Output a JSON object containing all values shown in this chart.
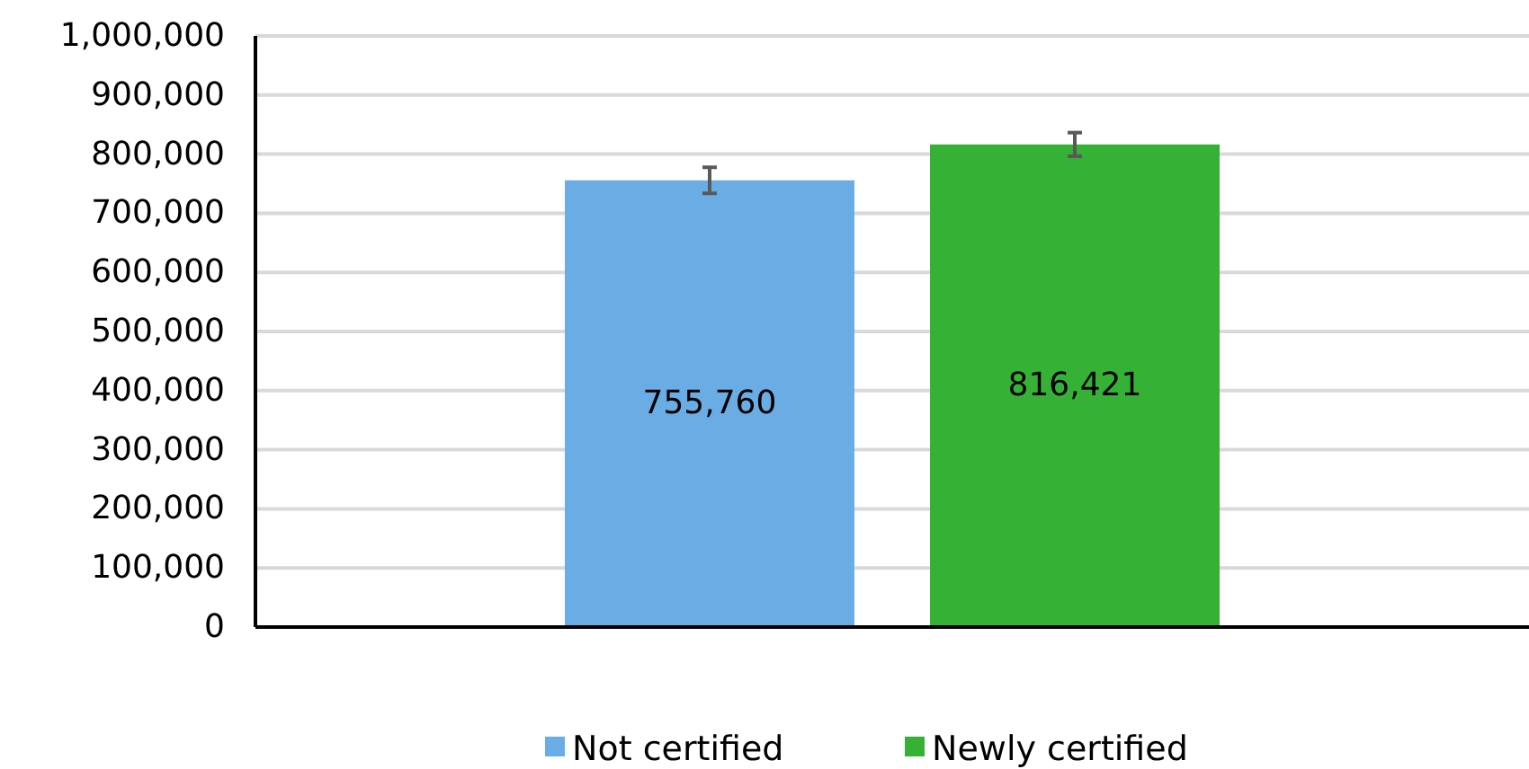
{
  "chart_data": {
    "type": "bar",
    "categories": [
      null
    ],
    "series": [
      {
        "name": "Not certified",
        "color": "#6aade4",
        "values": [
          755760
        ],
        "errors": [
          22000
        ],
        "value_labels": [
          "755,760"
        ]
      },
      {
        "name": "Newly certified",
        "color": "#35b235",
        "values": [
          816421
        ],
        "errors": [
          20000
        ],
        "value_labels": [
          "816,421"
        ]
      }
    ],
    "ylim": [
      0,
      1000000
    ],
    "yticks": [
      {
        "value": 0,
        "label": "0"
      },
      {
        "value": 100000,
        "label": "100,000"
      },
      {
        "value": 200000,
        "label": "200,000"
      },
      {
        "value": 300000,
        "label": "300,000"
      },
      {
        "value": 400000,
        "label": "400,000"
      },
      {
        "value": 500000,
        "label": "500,000"
      },
      {
        "value": 600000,
        "label": "600,000"
      },
      {
        "value": 700000,
        "label": "700,000"
      },
      {
        "value": 800000,
        "label": "800,000"
      },
      {
        "value": 900000,
        "label": "900,000"
      },
      {
        "value": 1000000,
        "label": "1,000,000"
      }
    ],
    "grid": "y",
    "legend": "bottom"
  }
}
